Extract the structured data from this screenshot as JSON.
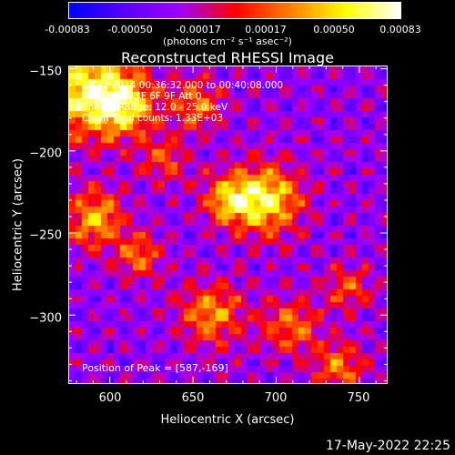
{
  "colorbar": {
    "tick_labels": [
      "-0.00083",
      "-0.00050",
      "-0.00017",
      "0.00017",
      "0.00050",
      "0.00083"
    ],
    "tick_values": [
      -0.00083,
      -0.0005,
      -0.00017,
      0.00017,
      0.0005,
      0.00083
    ],
    "units_label": "(photons cm⁻² s⁻¹ asec⁻²)",
    "colormap": [
      "#0000ff",
      "#5a00ff",
      "#a000ff",
      "#ff0000",
      "#ff8000",
      "#ffff00",
      "#ffffff"
    ]
  },
  "chart_data": {
    "type": "heatmap",
    "title": "Reconstructed RHESSI Image",
    "xlabel": "Heliocentric X (arcsec)",
    "ylabel": "Heliocentric Y (arcsec)",
    "xlim": [
      575,
      767
    ],
    "ylim": [
      -342,
      -148
    ],
    "x_ticks": [
      600,
      650,
      700,
      750
    ],
    "y_ticks": [
      -150,
      -200,
      -250,
      -300
    ],
    "x_tick_labels": [
      "600",
      "650",
      "700",
      "750"
    ],
    "y_tick_labels": [
      "−150",
      "−200",
      "−250",
      "−300"
    ],
    "value_range": [
      -0.00083,
      0.00083
    ],
    "peak_position": [
      587,
      -169
    ],
    "info_lines": [
      "3-Oct-2014 00:36:32.000 to 00:40:08.000",
      "Detectors: 3F 6F 9F  Att 0",
      "Energy Range: 12.0 - 25.0 keV",
      "Clean     Total counts: 1.33E+03"
    ],
    "peak_label": "Position of Peak = [587,-169]"
  },
  "footer": {
    "timestamp": "17-May-2022 22:25"
  }
}
